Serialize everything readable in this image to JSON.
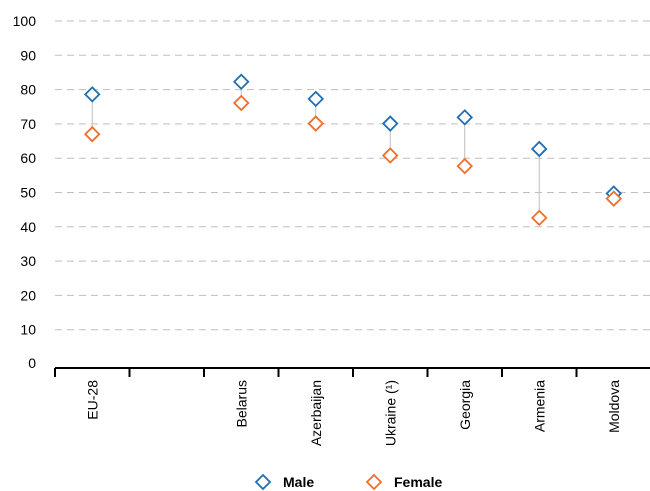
{
  "chart_data": {
    "type": "scatter",
    "categories": [
      "EU-28",
      "",
      "Belarus",
      "Azerbaijan",
      "Ukraine (¹)",
      "Georgia",
      "Armenia",
      "Moldova"
    ],
    "series": [
      {
        "name": "Male",
        "values": [
          78.6,
          null,
          82.3,
          77.3,
          70.1,
          71.9,
          62.7,
          49.7
        ]
      },
      {
        "name": "Female",
        "values": [
          67.0,
          null,
          76.1,
          70.1,
          60.8,
          57.7,
          42.6,
          48.2
        ]
      }
    ],
    "ylim": [
      0,
      100
    ],
    "yticks": [
      0,
      10,
      20,
      30,
      40,
      50,
      60,
      70,
      80,
      90,
      100
    ],
    "grid": true,
    "legend_position": "bottom-center",
    "colors": {
      "Male": "#1f6fb2",
      "Female": "#ee6f2a",
      "connector": "#bdbdbd",
      "grid": "#bfbfbf",
      "axis": "#000000"
    }
  }
}
